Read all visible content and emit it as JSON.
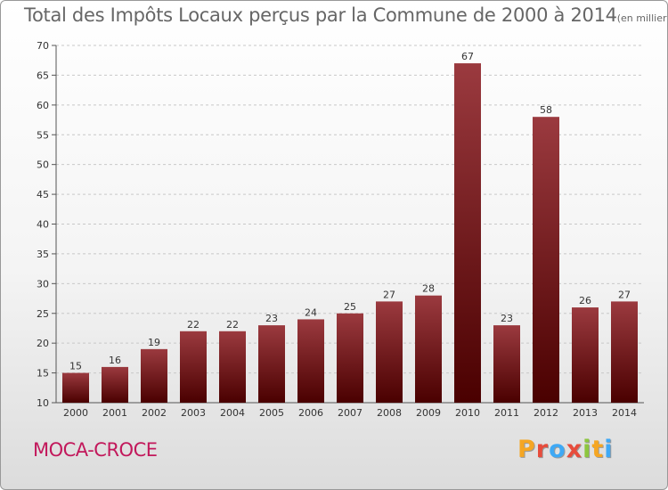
{
  "header": {
    "title": "Total des Impôts Locaux perçus par la Commune de 2000 à 2014",
    "unit": "(en milliers d'€)"
  },
  "footer": {
    "commune": "MOCA-CROCE",
    "logo_letters": [
      "P",
      "r",
      "o",
      "x",
      "i",
      "t",
      "i"
    ],
    "logo_colors": [
      "#f5a623",
      "#e74c3c",
      "#3fa9f5",
      "#e74c3c",
      "#8dc63f",
      "#f5a623",
      "#3fa9f5"
    ]
  },
  "colors": {
    "bar_top": "#9b3a3f",
    "bar_bottom": "#4a0000"
  },
  "chart_data": {
    "type": "bar",
    "title": "Total des Impôts Locaux perçus par la Commune de 2000 à 2014",
    "xlabel": "",
    "ylabel": "",
    "categories": [
      "2000",
      "2001",
      "2002",
      "2003",
      "2004",
      "2005",
      "2006",
      "2007",
      "2008",
      "2009",
      "2010",
      "2011",
      "2012",
      "2013",
      "2014"
    ],
    "values": [
      15,
      16,
      19,
      22,
      22,
      23,
      24,
      25,
      27,
      28,
      67,
      23,
      58,
      26,
      27
    ],
    "ylim": [
      10,
      70
    ],
    "yticks": [
      10,
      15,
      20,
      25,
      30,
      35,
      40,
      45,
      50,
      55,
      60,
      65,
      70
    ],
    "grid": "horizontal-dashed",
    "legend": "none"
  }
}
